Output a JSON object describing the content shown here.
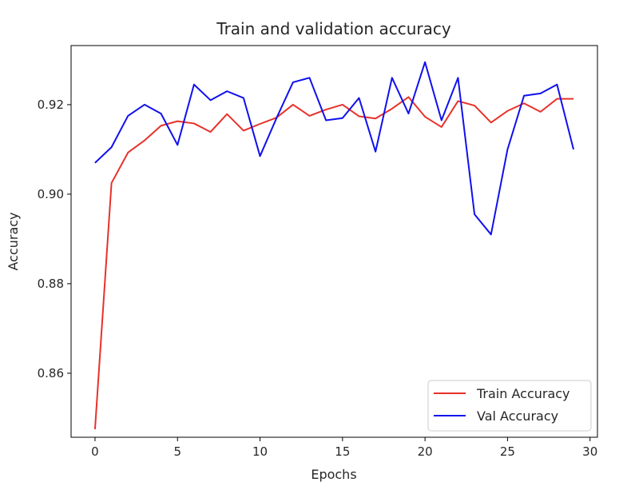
{
  "chart_data": {
    "type": "line",
    "title": "Train and validation accuracy",
    "xlabel": "Epochs",
    "ylabel": "Accuracy",
    "xlim": [
      -1.45,
      30.45
    ],
    "ylim": [
      0.8457,
      0.9332
    ],
    "xticks": [
      0,
      5,
      10,
      15,
      20,
      25,
      30
    ],
    "xtick_labels": [
      "0",
      "5",
      "10",
      "15",
      "20",
      "25",
      "30"
    ],
    "yticks": [
      0.86,
      0.88,
      0.9,
      0.92
    ],
    "ytick_labels": [
      "0.86",
      "0.88",
      "0.90",
      "0.92"
    ],
    "grid": false,
    "legend_position": "lower-right",
    "x": [
      0,
      1,
      2,
      3,
      4,
      5,
      6,
      7,
      8,
      9,
      10,
      11,
      12,
      13,
      14,
      15,
      16,
      17,
      18,
      19,
      20,
      21,
      22,
      23,
      24,
      25,
      26,
      27,
      28,
      29
    ],
    "series": [
      {
        "name": "Train Accuracy",
        "color": "#e8312a",
        "values": [
          0.8475,
          0.9025,
          0.9093,
          0.912,
          0.9153,
          0.9163,
          0.9158,
          0.9139,
          0.9179,
          0.9142,
          0.9157,
          0.9171,
          0.92,
          0.9175,
          0.9189,
          0.92,
          0.9174,
          0.9169,
          0.9191,
          0.9217,
          0.9173,
          0.915,
          0.9208,
          0.9198,
          0.916,
          0.9186,
          0.9203,
          0.9184,
          0.9213,
          0.9213
        ]
      },
      {
        "name": "Val Accuracy",
        "color": "#1010ee",
        "values": [
          0.907,
          0.9105,
          0.9175,
          0.92,
          0.918,
          0.911,
          0.9245,
          0.921,
          0.923,
          0.9215,
          0.9085,
          0.917,
          0.925,
          0.926,
          0.9165,
          0.917,
          0.9215,
          0.9095,
          0.926,
          0.918,
          0.9295,
          0.9165,
          0.926,
          0.8955,
          0.891,
          0.91,
          0.922,
          0.9225,
          0.9245,
          0.91
        ]
      }
    ]
  }
}
